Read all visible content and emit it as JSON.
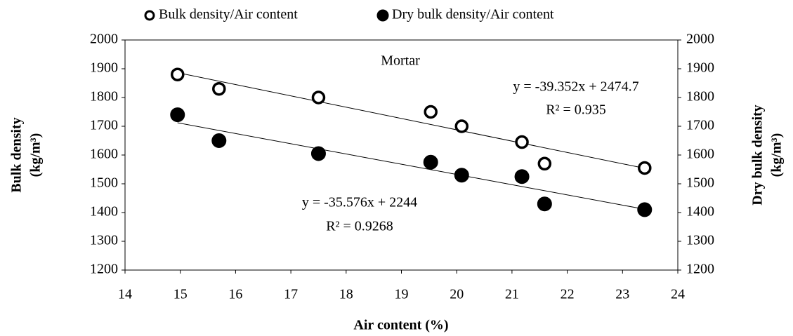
{
  "chart_data": {
    "type": "scatter",
    "title": "Mortar",
    "xlabel": "Air content (%)",
    "ylabel": [
      "Bulk density",
      "(kg/m³)"
    ],
    "y2label": [
      "Dry bulk density",
      "(kg/m³)"
    ],
    "xlim": [
      14,
      24
    ],
    "xticks": [
      14,
      15,
      16,
      17,
      18,
      19,
      20,
      21,
      22,
      23,
      24
    ],
    "ylim": [
      1200,
      2000
    ],
    "yticks": [
      1200,
      1300,
      1400,
      1500,
      1600,
      1700,
      1800,
      1900,
      2000
    ],
    "y2lim": [
      1200,
      2000
    ],
    "y2ticks": [
      1200,
      1300,
      1400,
      1500,
      1600,
      1700,
      1800,
      1900,
      2000
    ],
    "grid": false,
    "legend": "top",
    "series": [
      {
        "name": "Bulk density/Air content",
        "color": "#000000",
        "marker": "open",
        "x": [
          14.95,
          15.7,
          17.5,
          19.53,
          20.09,
          21.18,
          21.59,
          23.4
        ],
        "values": [
          1880,
          1830,
          1800,
          1750,
          1700,
          1645,
          1570,
          1555
        ],
        "trendline": {
          "equation": "y = -39.352x + 2474.7",
          "r2": "R² = 0.935",
          "slope": -39.352,
          "intercept": 2474.7
        }
      },
      {
        "name": "Dry bulk density/Air content",
        "color": "#000000",
        "marker": "filled",
        "axis": "y2",
        "x": [
          14.95,
          15.7,
          17.5,
          19.53,
          20.09,
          21.18,
          21.59,
          23.4
        ],
        "values": [
          1740,
          1650,
          1605,
          1575,
          1530,
          1525,
          1430,
          1410
        ],
        "trendline": {
          "equation": "y = -35.576x + 2244",
          "r2": "R² = 0.9268",
          "slope": -35.576,
          "intercept": 2244
        }
      }
    ]
  }
}
